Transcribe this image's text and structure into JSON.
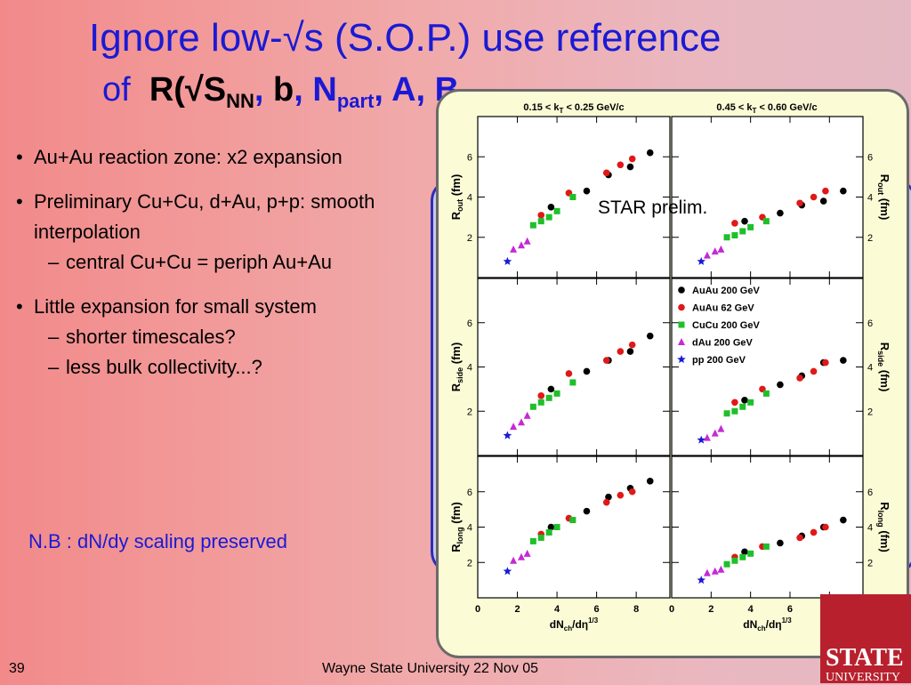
{
  "slide": {
    "title_line1": "Ignore low-√s (S.O.P.) use reference",
    "title_line2": {
      "of": "of",
      "r_open": "R(",
      "sqrt_s": "√S",
      "s_sub": "NN",
      "comma1": ", ",
      "b": "b",
      "comma2": ", N",
      "n_sub": "part",
      "tail": ", A, B"
    },
    "bullets": [
      {
        "text": "Au+Au reaction zone: x2 expansion",
        "subs": []
      },
      {
        "text": "Preliminary Cu+Cu, d+Au, p+p: smooth interpolation",
        "subs": [
          "central Cu+Cu = periph Au+Au"
        ]
      },
      {
        "text": "Little expansion for small system",
        "subs": [
          "shorter timescales?",
          "less bulk collectivity...?"
        ]
      }
    ],
    "note": "N.B : dN/dy scaling preserved",
    "footer_left": "39",
    "footer_center": "Wayne State University 22 Nov 05",
    "logo_line1": "STATE",
    "logo_line2": "UNIVERSITY"
  },
  "chart_data": {
    "type": "scatter",
    "panel_titles": [
      "0.15 < k",
      "T",
      " < 0.25 GeV/c",
      "0.45 < k",
      "T",
      " < 0.60 GeV/c"
    ],
    "annotation": "STAR prelim.",
    "xlabel": "dN",
    "xlabel_sub": "ch",
    "xlabel_mid": "/dη",
    "xlabel_sup": "1/3",
    "ylabels": [
      {
        "main": "R",
        "sub": "out",
        "unit": "(fm)"
      },
      {
        "main": "R",
        "sub": "side",
        "unit": "(fm)"
      },
      {
        "main": "R",
        "sub": "long",
        "unit": "(fm)"
      }
    ],
    "xlim": [
      0,
      9.7
    ],
    "ylim": [
      0,
      8.0
    ],
    "xticks": [
      "0",
      "2",
      "4",
      "6",
      "8"
    ],
    "yticks": [
      "2",
      "4",
      "6"
    ],
    "legend": [
      "AuAu 200 GeV",
      "AuAu 62 GeV",
      "CuCu 200 GeV",
      "dAu 200 GeV",
      "pp 200 GeV"
    ],
    "colors": {
      "AuAu 200 GeV": "#000000",
      "AuAu 62 GeV": "#e01818",
      "CuCu 200 GeV": "#1fbf2a",
      "dAu 200 GeV": "#c42ad6",
      "pp 200 GeV": "#1a1ad4"
    },
    "panels": [
      {
        "series": [
          {
            "name": "AuAu 200 GeV",
            "x": [
              3.7,
              5.5,
              6.6,
              7.7,
              8.7
            ],
            "y": [
              3.5,
              4.3,
              5.1,
              5.5,
              6.2
            ]
          },
          {
            "name": "AuAu 62 GeV",
            "x": [
              3.2,
              4.6,
              6.5,
              7.2,
              7.8
            ],
            "y": [
              3.1,
              4.2,
              5.2,
              5.6,
              5.9
            ]
          },
          {
            "name": "CuCu 200 GeV",
            "x": [
              2.8,
              3.2,
              3.6,
              4.0,
              4.8
            ],
            "y": [
              2.6,
              2.8,
              3.0,
              3.3,
              4.0
            ]
          },
          {
            "name": "dAu 200 GeV",
            "x": [
              1.8,
              2.2,
              2.5
            ],
            "y": [
              1.4,
              1.6,
              1.8
            ]
          },
          {
            "name": "pp 200 GeV",
            "x": [
              1.5
            ],
            "y": [
              0.8
            ]
          }
        ]
      },
      {
        "series": [
          {
            "name": "AuAu 200 GeV",
            "x": [
              3.7,
              5.5,
              6.6,
              7.7,
              8.7
            ],
            "y": [
              2.8,
              3.2,
              3.6,
              3.8,
              4.3
            ]
          },
          {
            "name": "AuAu 62 GeV",
            "x": [
              3.2,
              4.6,
              6.5,
              7.2,
              7.8
            ],
            "y": [
              2.7,
              3.0,
              3.7,
              4.0,
              4.3
            ]
          },
          {
            "name": "CuCu 200 GeV",
            "x": [
              2.8,
              3.2,
              3.6,
              4.0,
              4.8
            ],
            "y": [
              2.0,
              2.1,
              2.3,
              2.5,
              2.8
            ]
          },
          {
            "name": "dAu 200 GeV",
            "x": [
              1.8,
              2.2,
              2.5
            ],
            "y": [
              1.1,
              1.3,
              1.4
            ]
          },
          {
            "name": "pp 200 GeV",
            "x": [
              1.5
            ],
            "y": [
              0.8
            ]
          }
        ]
      },
      {
        "series": [
          {
            "name": "AuAu 200 GeV",
            "x": [
              3.7,
              5.5,
              6.6,
              7.7,
              8.7
            ],
            "y": [
              3.0,
              3.8,
              4.3,
              4.7,
              5.4
            ]
          },
          {
            "name": "AuAu 62 GeV",
            "x": [
              3.2,
              4.6,
              6.5,
              7.2,
              7.8
            ],
            "y": [
              2.7,
              3.7,
              4.3,
              4.7,
              5.0
            ]
          },
          {
            "name": "CuCu 200 GeV",
            "x": [
              2.8,
              3.2,
              3.6,
              4.0,
              4.8
            ],
            "y": [
              2.2,
              2.4,
              2.6,
              2.8,
              3.3
            ]
          },
          {
            "name": "dAu 200 GeV",
            "x": [
              1.8,
              2.2,
              2.5
            ],
            "y": [
              1.3,
              1.5,
              1.8
            ]
          },
          {
            "name": "pp 200 GeV",
            "x": [
              1.5
            ],
            "y": [
              0.9
            ]
          }
        ]
      },
      {
        "series": [
          {
            "name": "AuAu 200 GeV",
            "x": [
              3.7,
              5.5,
              6.6,
              7.7,
              8.7
            ],
            "y": [
              2.5,
              3.2,
              3.6,
              4.2,
              4.3
            ]
          },
          {
            "name": "AuAu 62 GeV",
            "x": [
              3.2,
              4.6,
              6.5,
              7.2,
              7.8
            ],
            "y": [
              2.4,
              3.0,
              3.5,
              3.8,
              4.2
            ]
          },
          {
            "name": "CuCu 200 GeV",
            "x": [
              2.8,
              3.2,
              3.6,
              4.0,
              4.8
            ],
            "y": [
              1.9,
              2.0,
              2.2,
              2.4,
              2.8
            ]
          },
          {
            "name": "dAu 200 GeV",
            "x": [
              1.8,
              2.2,
              2.5
            ],
            "y": [
              0.8,
              1.0,
              1.2
            ]
          },
          {
            "name": "pp 200 GeV",
            "x": [
              1.5
            ],
            "y": [
              0.7
            ]
          }
        ]
      },
      {
        "series": [
          {
            "name": "AuAu 200 GeV",
            "x": [
              3.7,
              5.5,
              6.6,
              7.7,
              8.7
            ],
            "y": [
              4.0,
              4.9,
              5.7,
              6.2,
              6.6
            ]
          },
          {
            "name": "AuAu 62 GeV",
            "x": [
              3.2,
              4.6,
              6.5,
              7.2,
              7.8
            ],
            "y": [
              3.6,
              4.5,
              5.4,
              5.8,
              6.0
            ]
          },
          {
            "name": "CuCu 200 GeV",
            "x": [
              2.8,
              3.2,
              3.6,
              4.0,
              4.8
            ],
            "y": [
              3.2,
              3.4,
              3.7,
              4.0,
              4.4
            ]
          },
          {
            "name": "dAu 200 GeV",
            "x": [
              1.8,
              2.2,
              2.5
            ],
            "y": [
              2.1,
              2.3,
              2.5
            ]
          },
          {
            "name": "pp 200 GeV",
            "x": [
              1.5
            ],
            "y": [
              1.5
            ]
          }
        ]
      },
      {
        "series": [
          {
            "name": "AuAu 200 GeV",
            "x": [
              3.7,
              5.5,
              6.6,
              7.7,
              8.7
            ],
            "y": [
              2.6,
              3.1,
              3.5,
              4.0,
              4.4
            ]
          },
          {
            "name": "AuAu 62 GeV",
            "x": [
              3.2,
              4.6,
              6.5,
              7.2,
              7.8
            ],
            "y": [
              2.3,
              2.9,
              3.4,
              3.7,
              4.0
            ]
          },
          {
            "name": "CuCu 200 GeV",
            "x": [
              2.8,
              3.2,
              3.6,
              4.0,
              4.8
            ],
            "y": [
              1.9,
              2.1,
              2.3,
              2.5,
              2.9
            ]
          },
          {
            "name": "dAu 200 GeV",
            "x": [
              1.8,
              2.2,
              2.5
            ],
            "y": [
              1.4,
              1.5,
              1.6
            ]
          },
          {
            "name": "pp 200 GeV",
            "x": [
              1.5
            ],
            "y": [
              1.0
            ]
          }
        ]
      }
    ]
  }
}
